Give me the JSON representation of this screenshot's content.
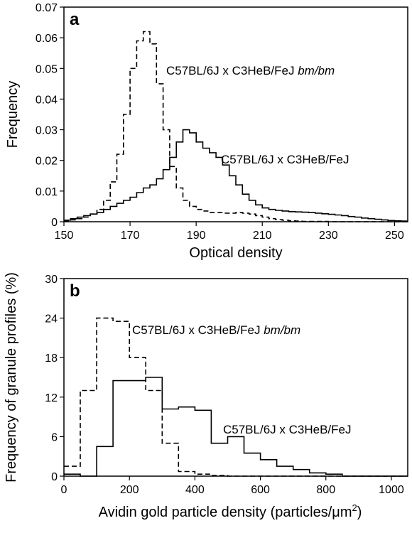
{
  "chart_data": [
    {
      "panel_label": "a",
      "type": "line",
      "xlabel": "Optical density",
      "ylabel": "Frequency",
      "xlim": [
        150,
        254
      ],
      "ylim": [
        0,
        0.07
      ],
      "xticks": [
        150,
        170,
        190,
        210,
        230,
        250
      ],
      "yticks": [
        0,
        0.01,
        0.02,
        0.03,
        0.04,
        0.05,
        0.06,
        0.07
      ],
      "grid": false,
      "series": [
        {
          "name": "C57BL/6J x C3HeB/FeJ",
          "style": "solid",
          "x": [
            150,
            152,
            154,
            156,
            158,
            160,
            162,
            164,
            166,
            168,
            170,
            172,
            174,
            176,
            178,
            180,
            182,
            184,
            186,
            188,
            190,
            192,
            194,
            196,
            198,
            200,
            202,
            204,
            206,
            208,
            210,
            212,
            214,
            216,
            218,
            220,
            222,
            224,
            226,
            228,
            230,
            232,
            234,
            236,
            238,
            240,
            242,
            244,
            246,
            248,
            250,
            252,
            254
          ],
          "y": [
            0.0005,
            0.001,
            0.0015,
            0.002,
            0.0025,
            0.003,
            0.004,
            0.005,
            0.006,
            0.007,
            0.008,
            0.0095,
            0.011,
            0.012,
            0.014,
            0.017,
            0.021,
            0.026,
            0.03,
            0.029,
            0.026,
            0.024,
            0.0225,
            0.021,
            0.0185,
            0.015,
            0.012,
            0.009,
            0.007,
            0.0055,
            0.0045,
            0.004,
            0.0037,
            0.0035,
            0.0033,
            0.0032,
            0.0031,
            0.003,
            0.0028,
            0.0026,
            0.0024,
            0.0022,
            0.002,
            0.0017,
            0.0015,
            0.0012,
            0.001,
            0.0008,
            0.0006,
            0.0004,
            0.0003,
            0.0002,
            0.0002
          ]
        },
        {
          "name": "C57BL/6J x C3HeB/FeJ bm/bm",
          "style": "dashed",
          "x": [
            150,
            152,
            154,
            156,
            158,
            160,
            162,
            164,
            166,
            168,
            170,
            172,
            174,
            176,
            178,
            180,
            182,
            184,
            186,
            188,
            190,
            192,
            194,
            196,
            198,
            200,
            202,
            204,
            206,
            208,
            210,
            212,
            214,
            216,
            218,
            220,
            222,
            224,
            226,
            228,
            230,
            232,
            234,
            236,
            238,
            240,
            242,
            244,
            246,
            248,
            250,
            252,
            254
          ],
          "y": [
            0.0003,
            0.0006,
            0.001,
            0.0015,
            0.0025,
            0.004,
            0.007,
            0.013,
            0.022,
            0.035,
            0.05,
            0.059,
            0.062,
            0.058,
            0.045,
            0.03,
            0.018,
            0.011,
            0.007,
            0.005,
            0.004,
            0.0035,
            0.003,
            0.003,
            0.0028,
            0.0028,
            0.003,
            0.0028,
            0.0025,
            0.002,
            0.0015,
            0.001,
            0.0007,
            0.0005,
            0.0003,
            0.0002,
            0.0001,
            0.0001,
            0.0001,
            0.0001,
            0,
            0,
            0,
            0,
            0,
            0,
            0,
            0,
            0,
            0,
            0,
            0,
            0
          ]
        }
      ]
    },
    {
      "panel_label": "b",
      "type": "line",
      "xlabel": "Avidin gold particle density (particles/μm",
      "xlabel_superscript": "2",
      "xlabel_close": ")",
      "ylabel": "Frequency of granule profiles (%)",
      "xlim": [
        0,
        1050
      ],
      "ylim": [
        0,
        30
      ],
      "xticks": [
        0,
        200,
        400,
        600,
        800,
        1000
      ],
      "yticks": [
        0,
        6,
        12,
        18,
        24,
        30
      ],
      "grid": false,
      "series": [
        {
          "name": "C57BL/6J x C3HeB/FeJ",
          "style": "solid",
          "x": [
            0,
            50,
            100,
            150,
            200,
            250,
            300,
            350,
            400,
            450,
            500,
            550,
            600,
            650,
            700,
            750,
            800,
            850
          ],
          "y": [
            0.3,
            0,
            4.5,
            14.5,
            14.5,
            15,
            10.2,
            10.5,
            10,
            5,
            6,
            3.5,
            2.5,
            1.5,
            1,
            0.5,
            0.3,
            0
          ]
        },
        {
          "name": "C57BL/6J x C3HeB/FeJ bm/bm",
          "style": "dashed",
          "x": [
            0,
            50,
            100,
            150,
            200,
            250,
            300,
            350,
            400,
            450,
            500,
            550,
            600,
            650,
            700,
            750,
            800,
            850
          ],
          "y": [
            1.5,
            13,
            24,
            23.5,
            18,
            13,
            5,
            0.7,
            0.3,
            0.1,
            0,
            0,
            0,
            0,
            0,
            0,
            0,
            0
          ]
        }
      ]
    }
  ],
  "annotations": {
    "a_dashed_prefix": "C57BL/6J x C3HeB/FeJ ",
    "a_dashed_italic": "bm/bm",
    "a_solid": "C57BL/6J x C3HeB/FeJ",
    "b_dashed_prefix": "C57BL/6J x C3HeB/FeJ ",
    "b_dashed_italic": "bm/bm",
    "b_solid": "C57BL/6J x C3HeB/FeJ"
  }
}
